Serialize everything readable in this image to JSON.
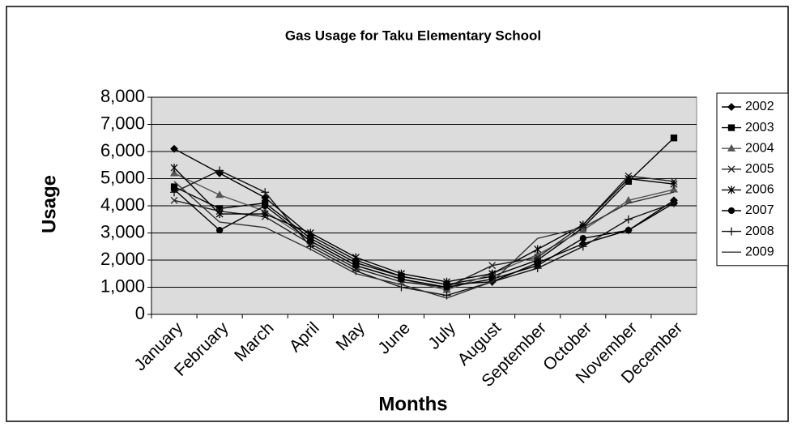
{
  "chart_data": {
    "type": "line",
    "title": "Gas Usage for Taku Elementary School",
    "x_label": "Months",
    "y_label": "Usage",
    "categories": [
      "January",
      "February",
      "March",
      "April",
      "May",
      "June",
      "July",
      "August",
      "September",
      "October",
      "November",
      "December"
    ],
    "series": [
      {
        "name": "2002",
        "color": "#000000",
        "marker": "diamond",
        "values": [
          6100,
          5200,
          4300,
          2900,
          2000,
          1400,
          1100,
          1200,
          1900,
          2600,
          3100,
          4200
        ]
      },
      {
        "name": "2003",
        "color": "#000000",
        "marker": "square",
        "values": [
          4700,
          3900,
          4100,
          2800,
          1900,
          1400,
          1100,
          1400,
          2000,
          3200,
          4900,
          6500
        ]
      },
      {
        "name": "2004",
        "color": "#555555",
        "marker": "triangle",
        "values": [
          5200,
          4400,
          3800,
          2700,
          1800,
          1300,
          900,
          1500,
          2200,
          3100,
          4200,
          4600
        ]
      },
      {
        "name": "2005",
        "color": "#222222",
        "marker": "x",
        "values": [
          4200,
          3800,
          3600,
          2600,
          1700,
          1200,
          1000,
          1800,
          2100,
          3300,
          5100,
          4900
        ]
      },
      {
        "name": "2006",
        "color": "#000000",
        "marker": "star",
        "values": [
          5400,
          3700,
          3700,
          3000,
          2100,
          1500,
          1200,
          1500,
          2400,
          3300,
          5000,
          4800
        ]
      },
      {
        "name": "2007",
        "color": "#000000",
        "marker": "circle",
        "values": [
          4600,
          3100,
          4000,
          2700,
          1800,
          1300,
          1000,
          1300,
          1800,
          2800,
          3100,
          4100
        ]
      },
      {
        "name": "2008",
        "color": "#111111",
        "marker": "plus",
        "values": [
          4500,
          5300,
          4500,
          2500,
          1600,
          1000,
          700,
          1200,
          1700,
          2500,
          3500,
          4100
        ]
      },
      {
        "name": "2009",
        "color": "#333333",
        "marker": "none",
        "values": [
          4900,
          3400,
          3200,
          2400,
          1500,
          1100,
          600,
          1200,
          2800,
          3200,
          4100,
          4500
        ]
      }
    ],
    "ylim": [
      0,
      8000
    ],
    "yticks": [
      0,
      {
        "value": 1000,
        "label": "1,000"
      },
      {
        "value": 2000,
        "label": "2,000"
      },
      {
        "value": 3000,
        "label": "3,000"
      },
      {
        "value": 4000,
        "label": "4,000"
      },
      {
        "value": 5000,
        "label": "5,000"
      },
      {
        "value": 6000,
        "label": "6,000"
      },
      {
        "value": 7000,
        "label": "7,000"
      },
      {
        "value": 8000,
        "label": "8,000"
      }
    ],
    "grid": true,
    "legend": "right"
  }
}
